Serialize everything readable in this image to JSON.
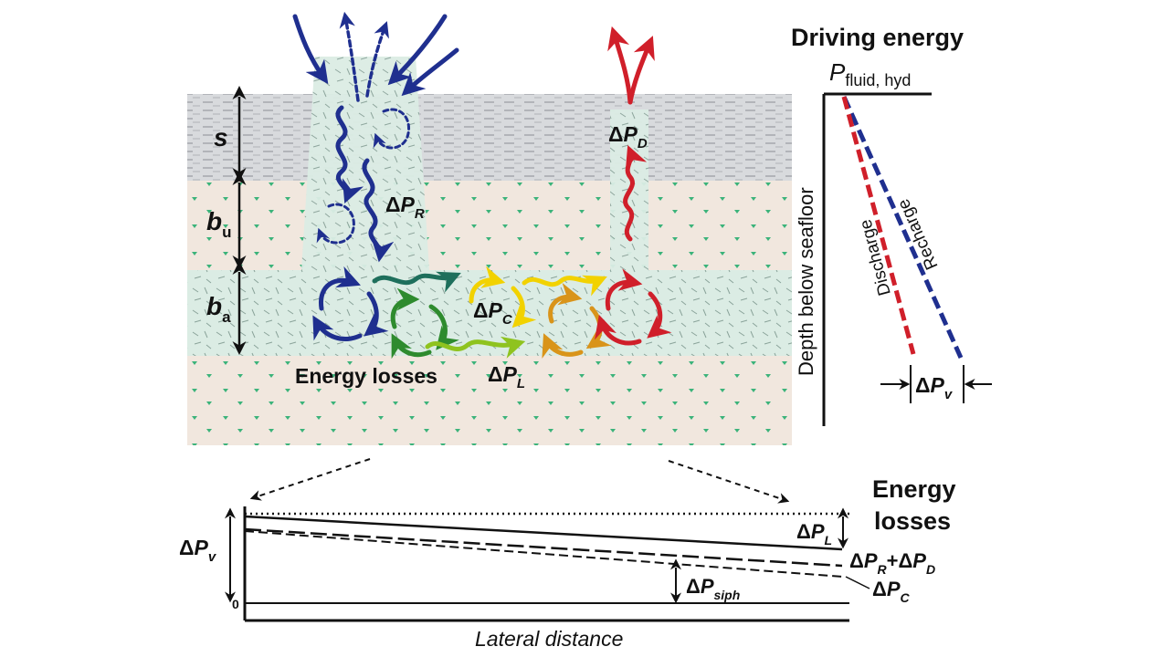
{
  "colors": {
    "seawater": "#d6d8dc",
    "sediment": "#f1e7de",
    "aquifer": "#ddeee6",
    "recharge": "#1f2f8f",
    "discharge": "#d01f2a",
    "green": "#2e8b2e",
    "teal": "#1e6f5c",
    "yellow": "#f2d200",
    "orange": "#d9941a",
    "ink": "#111111"
  },
  "cross_section": {
    "layers": {
      "s": {
        "main": "s",
        "sub": ""
      },
      "bu": {
        "main": "b",
        "sub": "u"
      },
      "ba": {
        "main": "b",
        "sub": "a"
      }
    },
    "labels": {
      "delta_pr": {
        "delta": "Δ",
        "p": "P",
        "sub": "R"
      },
      "delta_pd": {
        "delta": "Δ",
        "p": "P",
        "sub": "D"
      },
      "delta_pc": {
        "delta": "Δ",
        "p": "P",
        "sub": "C"
      },
      "delta_pl": {
        "delta": "Δ",
        "p": "P",
        "sub": "L"
      },
      "energy_losses": "Energy losses"
    }
  },
  "driving_panel": {
    "title": "Driving energy",
    "p_fluid": {
      "p": "P",
      "sub": "fluid, hyd"
    },
    "y_axis_label": "Depth below seafloor",
    "recharge_label": "Recharge",
    "discharge_label": "Discharge",
    "delta_pv": {
      "delta": "Δ",
      "p": "P",
      "sub": "v"
    }
  },
  "losses_panel": {
    "title_line1": "Energy",
    "title_line2": "losses",
    "x_axis_label": "Lateral distance",
    "zero_tick": "0",
    "delta_pv": {
      "delta": "Δ",
      "p": "P",
      "sub": "v"
    },
    "delta_pl": {
      "delta": "Δ",
      "p": "P",
      "sub": "L"
    },
    "delta_prpd": {
      "d1": "Δ",
      "p1": "P",
      "s1": "R",
      "plus": "+",
      "d2": "Δ",
      "p2": "P",
      "s2": "D"
    },
    "delta_pc": {
      "delta": "Δ",
      "p": "P",
      "sub": "C"
    },
    "delta_psiph": {
      "delta": "Δ",
      "p": "P",
      "sub": "siph"
    }
  }
}
